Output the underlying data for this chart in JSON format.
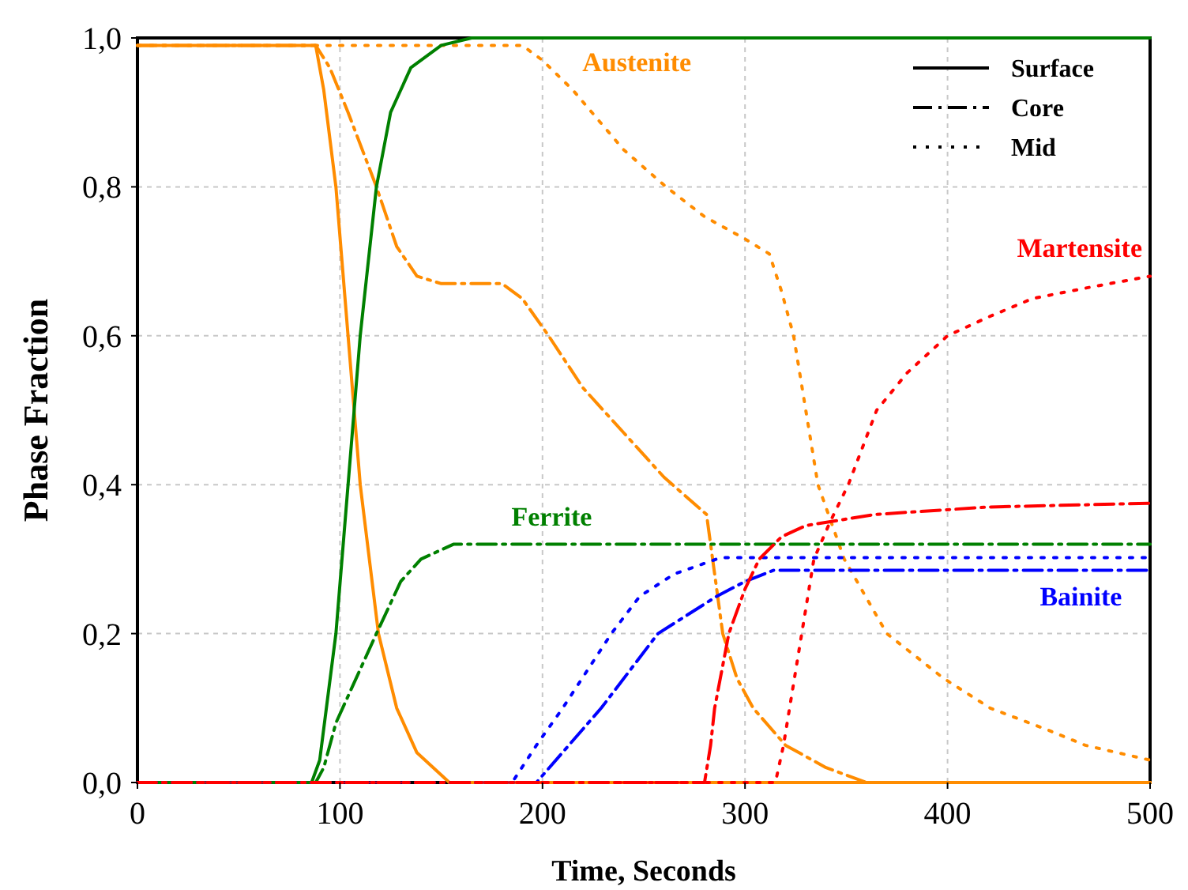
{
  "chart_data": {
    "type": "line",
    "xlabel": "Time, Seconds",
    "ylabel": "Phase Fraction",
    "xlim": [
      0,
      500
    ],
    "xticks": [
      0,
      100,
      200,
      300,
      400,
      500
    ],
    "ylim": [
      0,
      1
    ],
    "yticks": [
      {
        "value": 0,
        "label": "0,0"
      },
      {
        "value": 0.2,
        "label": "0,2"
      },
      {
        "value": 0.4,
        "label": "0,4"
      },
      {
        "value": 0.6,
        "label": "0,6"
      },
      {
        "value": 0.8,
        "label": "0,8"
      },
      {
        "value": 1,
        "label": "1,0"
      }
    ],
    "grid": true,
    "marker": "none",
    "series": [
      {
        "color": "#ff8c00",
        "line_style": "solid",
        "x": [
          0,
          88,
          92,
          98,
          104,
          110,
          119,
          128,
          138,
          150,
          154,
          500
        ],
        "values": [
          0.99,
          0.99,
          0.93,
          0.8,
          0.6,
          0.4,
          0.2,
          0.1,
          0.04,
          0.01,
          0,
          0
        ]
      },
      {
        "color": "#ff8c00",
        "line_style": "dashed",
        "x": [
          0,
          88,
          95,
          104,
          118,
          128,
          138,
          150,
          180,
          190,
          203,
          220,
          240,
          260,
          281,
          285,
          289,
          296,
          304,
          320,
          340,
          360,
          500
        ],
        "values": [
          0.99,
          0.99,
          0.96,
          0.9,
          0.8,
          0.72,
          0.68,
          0.67,
          0.67,
          0.65,
          0.6,
          0.53,
          0.47,
          0.41,
          0.36,
          0.28,
          0.2,
          0.14,
          0.1,
          0.05,
          0.02,
          0,
          0
        ]
      },
      {
        "color": "#ff8c00",
        "line_style": "dotted",
        "x": [
          0,
          190,
          200,
          215,
          240,
          261,
          280,
          300,
          312,
          318,
          324,
          330,
          336,
          349,
          370,
          398,
          421,
          450,
          468,
          500
        ],
        "values": [
          0.99,
          0.99,
          0.97,
          0.93,
          0.85,
          0.8,
          0.76,
          0.73,
          0.71,
          0.66,
          0.6,
          0.5,
          0.4,
          0.3,
          0.2,
          0.14,
          0.1,
          0.07,
          0.05,
          0.03
        ]
      },
      {
        "color": "#008000",
        "line_style": "solid",
        "x": [
          0,
          86,
          90,
          98,
          104,
          110,
          118,
          125,
          135,
          150,
          165,
          500
        ],
        "values": [
          0,
          0,
          0.03,
          0.2,
          0.4,
          0.6,
          0.8,
          0.9,
          0.96,
          0.99,
          1,
          1
        ]
      },
      {
        "color": "#008000",
        "line_style": "dashed",
        "x": [
          0,
          88,
          92,
          98,
          108,
          118,
          130,
          140,
          156,
          180,
          500
        ],
        "values": [
          0,
          0,
          0.02,
          0.08,
          0.14,
          0.2,
          0.27,
          0.3,
          0.32,
          0.32,
          0.32
        ]
      },
      {
        "color": "#0000ff",
        "line_style": "dashed",
        "x": [
          0,
          197,
          213,
          229,
          257,
          286,
          300,
          314,
          490,
          500
        ],
        "values": [
          0,
          0,
          0.05,
          0.1,
          0.2,
          0.25,
          0.27,
          0.285,
          0.285,
          0.285
        ]
      },
      {
        "color": "#0000ff",
        "line_style": "dotted",
        "x": [
          0,
          185,
          197,
          210,
          222,
          234,
          248,
          265,
          288,
          500
        ],
        "values": [
          0,
          0,
          0.05,
          0.1,
          0.15,
          0.2,
          0.25,
          0.28,
          0.302,
          0.302
        ]
      },
      {
        "color": "#ff0000",
        "line_style": "dashed",
        "x": [
          0,
          280,
          283,
          285,
          292,
          300,
          307,
          318,
          330,
          364,
          420,
          500
        ],
        "values": [
          0,
          0,
          0.05,
          0.1,
          0.2,
          0.26,
          0.3,
          0.33,
          0.345,
          0.36,
          0.37,
          0.375
        ]
      },
      {
        "color": "#ff0000",
        "line_style": "dotted",
        "x": [
          0,
          315,
          319,
          322,
          328,
          334,
          342,
          351,
          365,
          380,
          400,
          420,
          442,
          470,
          500
        ],
        "values": [
          0,
          0,
          0.05,
          0.1,
          0.2,
          0.3,
          0.35,
          0.4,
          0.5,
          0.55,
          0.6,
          0.625,
          0.65,
          0.665,
          0.68
        ]
      }
    ],
    "annotations": [
      "Surface",
      "Core",
      "Mid",
      {
        "text": "Austenite",
        "x": 215,
        "y": 0.93
      },
      {
        "text": "Martensite",
        "x": 500,
        "y": 0.68
      },
      {
        "text": "Ferrite",
        "x": 180,
        "y": 0.32
      },
      {
        "text": "Bainite",
        "x": 490,
        "y": 0.285
      }
    ]
  }
}
